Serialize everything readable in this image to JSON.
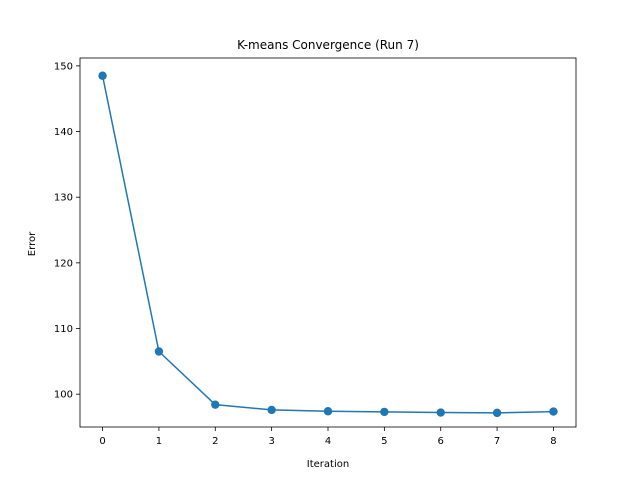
{
  "chart_data": {
    "type": "line",
    "title": "K-means Convergence (Run 7)",
    "xlabel": "Iteration",
    "ylabel": "Error",
    "x": [
      0,
      1,
      2,
      3,
      4,
      5,
      6,
      7,
      8
    ],
    "series": [
      {
        "values": [
          148.5,
          106.5,
          98.4,
          97.6,
          97.4,
          97.3,
          97.2,
          97.15,
          97.35
        ],
        "color": "#1f77b4",
        "marker": "circle"
      }
    ],
    "xlim": [
      -0.4,
      8.4
    ],
    "ylim": [
      95.0,
      151.2
    ],
    "xticks": [
      "0",
      "1",
      "2",
      "3",
      "4",
      "5",
      "6",
      "7",
      "8"
    ],
    "yticks": [
      "100",
      "110",
      "120",
      "130",
      "140",
      "150"
    ],
    "grid": false,
    "legend": "none"
  }
}
